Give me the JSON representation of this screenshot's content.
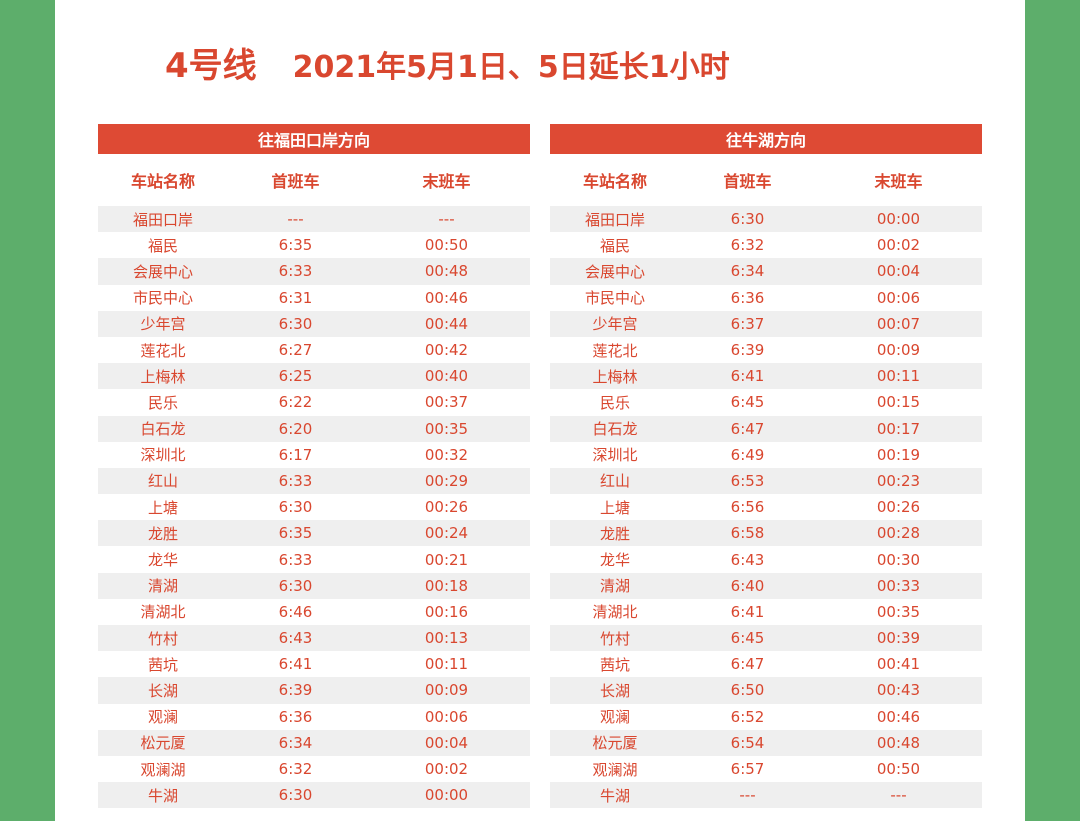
{
  "title": {
    "line": "4号线",
    "notice": "2021年5月1日、5日延长1小时"
  },
  "columns": {
    "station": "车站名称",
    "first": "首班车",
    "last": "末班车"
  },
  "left_table": {
    "direction": "往福田口岸方向",
    "rows": [
      [
        "福田口岸",
        "---",
        "---"
      ],
      [
        "福民",
        "6:35",
        "00:50"
      ],
      [
        "会展中心",
        "6:33",
        "00:48"
      ],
      [
        "市民中心",
        "6:31",
        "00:46"
      ],
      [
        "少年宫",
        "6:30",
        "00:44"
      ],
      [
        "莲花北",
        "6:27",
        "00:42"
      ],
      [
        "上梅林",
        "6:25",
        "00:40"
      ],
      [
        "民乐",
        "6:22",
        "00:37"
      ],
      [
        "白石龙",
        "6:20",
        "00:35"
      ],
      [
        "深圳北",
        "6:17",
        "00:32"
      ],
      [
        "红山",
        "6:33",
        "00:29"
      ],
      [
        "上塘",
        "6:30",
        "00:26"
      ],
      [
        "龙胜",
        "6:35",
        "00:24"
      ],
      [
        "龙华",
        "6:33",
        "00:21"
      ],
      [
        "清湖",
        "6:30",
        "00:18"
      ],
      [
        "清湖北",
        "6:46",
        "00:16"
      ],
      [
        "竹村",
        "6:43",
        "00:13"
      ],
      [
        "茜坑",
        "6:41",
        "00:11"
      ],
      [
        "长湖",
        "6:39",
        "00:09"
      ],
      [
        "观澜",
        "6:36",
        "00:06"
      ],
      [
        "松元厦",
        "6:34",
        "00:04"
      ],
      [
        "观澜湖",
        "6:32",
        "00:02"
      ],
      [
        "牛湖",
        "6:30",
        "00:00"
      ]
    ]
  },
  "right_table": {
    "direction": "往牛湖方向",
    "rows": [
      [
        "福田口岸",
        "6:30",
        "00:00"
      ],
      [
        "福民",
        "6:32",
        "00:02"
      ],
      [
        "会展中心",
        "6:34",
        "00:04"
      ],
      [
        "市民中心",
        "6:36",
        "00:06"
      ],
      [
        "少年宫",
        "6:37",
        "00:07"
      ],
      [
        "莲花北",
        "6:39",
        "00:09"
      ],
      [
        "上梅林",
        "6:41",
        "00:11"
      ],
      [
        "民乐",
        "6:45",
        "00:15"
      ],
      [
        "白石龙",
        "6:47",
        "00:17"
      ],
      [
        "深圳北",
        "6:49",
        "00:19"
      ],
      [
        "红山",
        "6:53",
        "00:23"
      ],
      [
        "上塘",
        "6:56",
        "00:26"
      ],
      [
        "龙胜",
        "6:58",
        "00:28"
      ],
      [
        "龙华",
        "6:43",
        "00:30"
      ],
      [
        "清湖",
        "6:40",
        "00:33"
      ],
      [
        "清湖北",
        "6:41",
        "00:35"
      ],
      [
        "竹村",
        "6:45",
        "00:39"
      ],
      [
        "茜坑",
        "6:47",
        "00:41"
      ],
      [
        "长湖",
        "6:50",
        "00:43"
      ],
      [
        "观澜",
        "6:52",
        "00:46"
      ],
      [
        "松元厦",
        "6:54",
        "00:48"
      ],
      [
        "观澜湖",
        "6:57",
        "00:50"
      ],
      [
        "牛湖",
        "---",
        "---"
      ]
    ]
  },
  "colors": {
    "background": "#5dae6b",
    "accent": "#de4a34",
    "text": "#d9472f",
    "stripe": "#efefef"
  }
}
